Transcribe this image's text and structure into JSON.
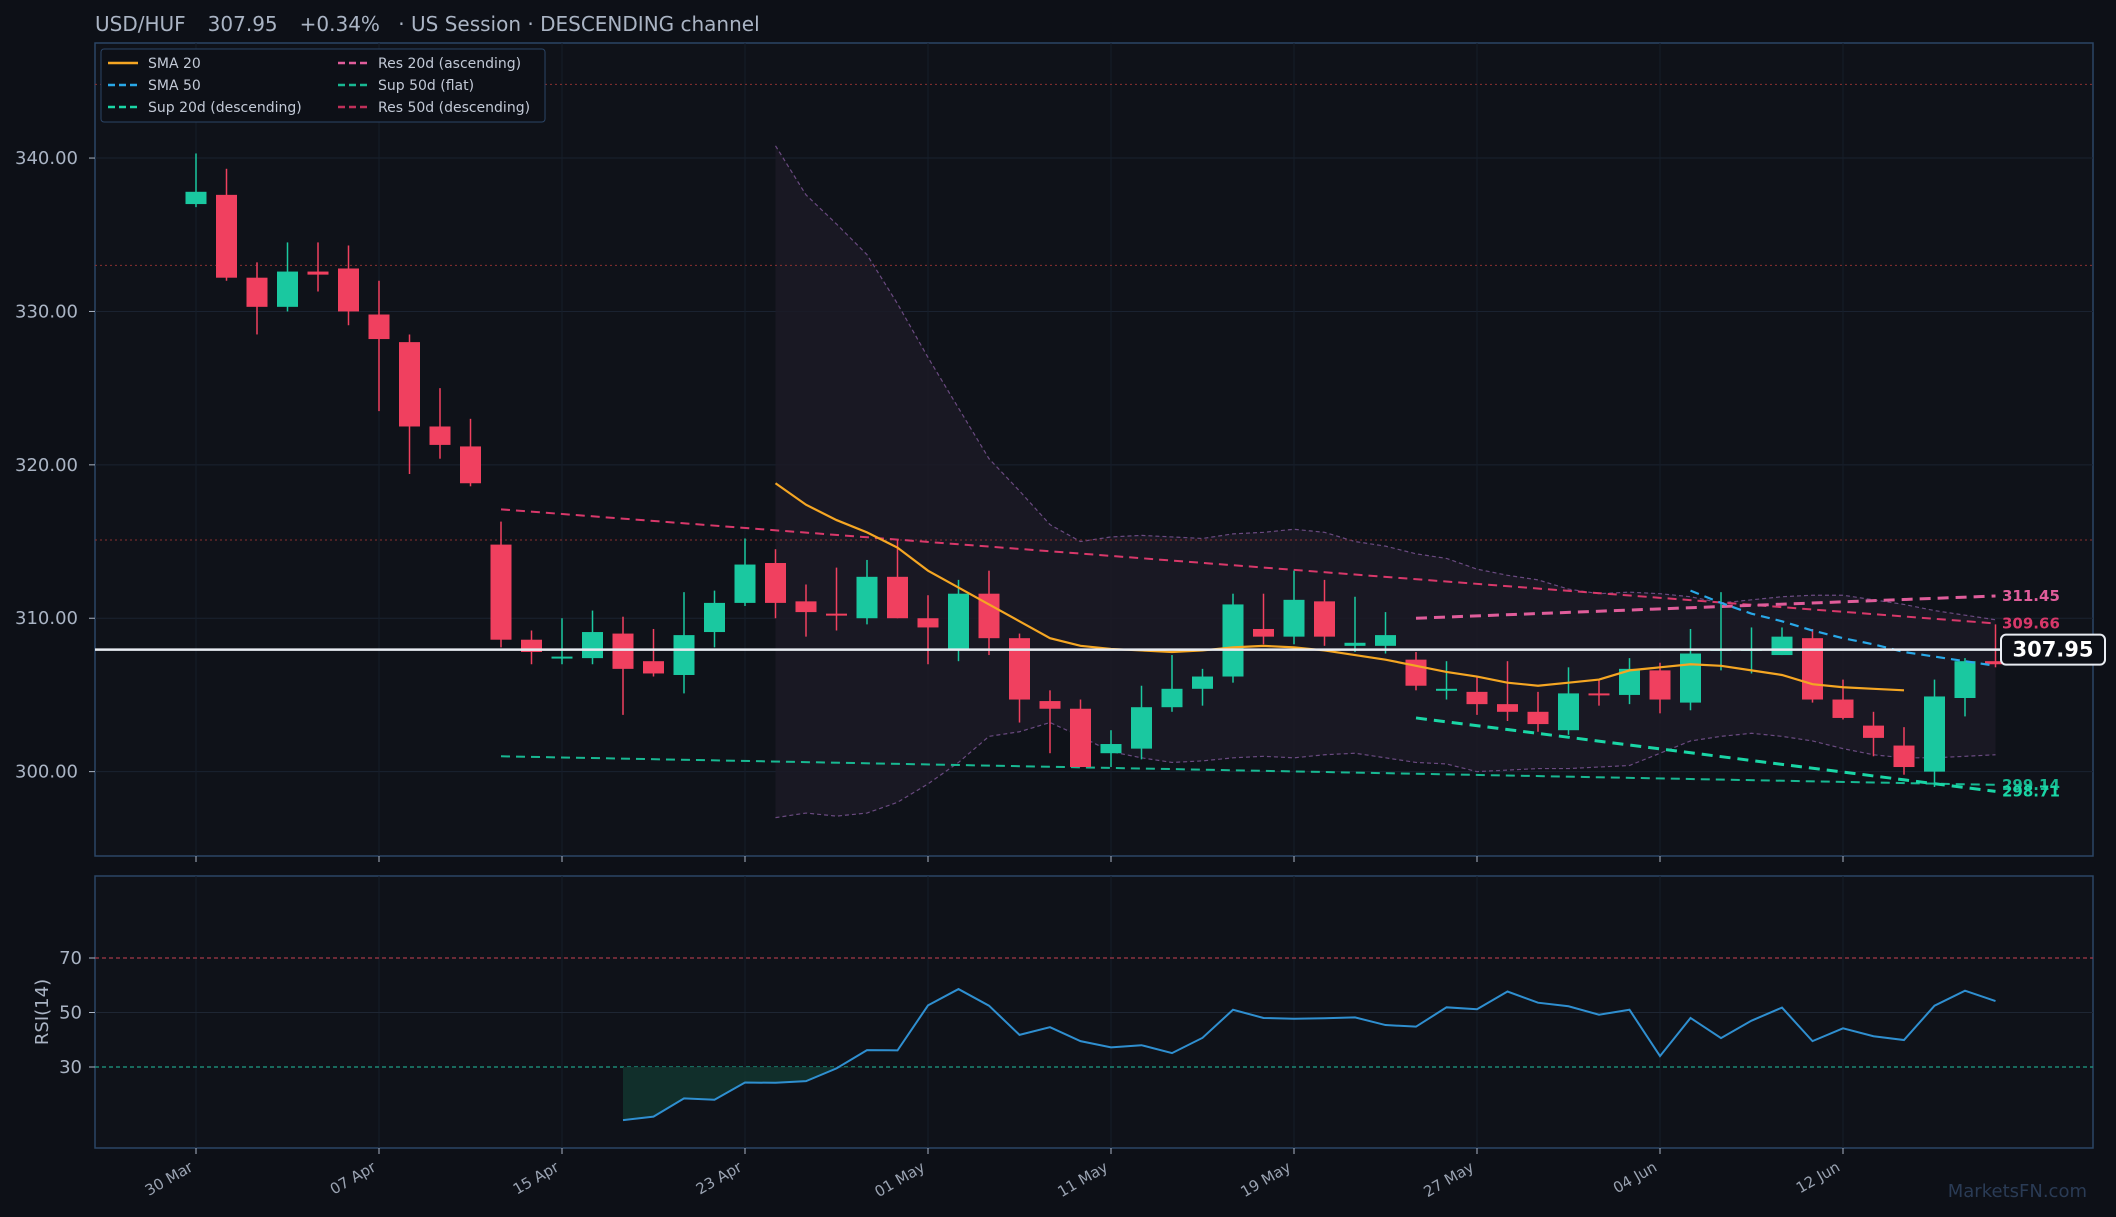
{
  "header": {
    "pair": "USD/HUF",
    "price": "307.95",
    "change": "+0.34%",
    "session": "US Session",
    "channel": "DESCENDING channel"
  },
  "watermark": "MarketsFN.com",
  "colors": {
    "background": "#0d1017",
    "up": "#1ac8a0",
    "down": "#f0405f",
    "sma20": "#f5a623",
    "sma50": "#29a8e8",
    "support": "#1ad6a6",
    "resistance": "#e05d9b",
    "rsi": "#2f8fd0"
  },
  "legend": [
    {
      "label": "SMA 20",
      "color": "#f5a623",
      "dash": "solid"
    },
    {
      "label": "SMA 50",
      "color": "#29a8e8",
      "dash": "dashed"
    },
    {
      "label": "Sup 20d (descending)",
      "color": "#1ad6a6",
      "dash": "dashed"
    },
    {
      "label": "Res 20d (ascending)",
      "color": "#e05d9b",
      "dash": "dashed"
    },
    {
      "label": "Sup 50d (flat)",
      "color": "#18b892",
      "dash": "dashed"
    },
    {
      "label": "Res 50d (descending)",
      "color": "#c0305a",
      "dash": "dashed"
    }
  ],
  "chart_data": {
    "type": "candlestick",
    "ylim": [
      294.5,
      347.5
    ],
    "yticks": [
      "300.00",
      "310.00",
      "320.00",
      "330.00",
      "340.00"
    ],
    "ytick_values": [
      300,
      310,
      320,
      330,
      340
    ],
    "xticks": [
      "30 Mar",
      "07 Apr",
      "15 Apr",
      "23 Apr",
      "01 May",
      "11 May",
      "19 May",
      "27 May",
      "04 Jun",
      "12 Jun"
    ],
    "xtick_index": [
      0,
      6,
      12,
      18,
      24,
      30,
      36,
      42,
      48,
      54
    ],
    "dotted_levels": [
      344.8,
      333.0,
      315.1
    ],
    "current_price": 307.95,
    "candles": [
      [
        337.0,
        337.8,
        340.3,
        336.8
      ],
      [
        337.6,
        332.2,
        339.3,
        332.0
      ],
      [
        332.2,
        330.3,
        333.2,
        328.5
      ],
      [
        330.3,
        332.6,
        334.5,
        330.0
      ],
      [
        332.6,
        332.4,
        334.5,
        331.3
      ],
      [
        332.8,
        330.0,
        334.3,
        329.1
      ],
      [
        329.8,
        328.2,
        332.0,
        323.5
      ],
      [
        328.0,
        322.5,
        328.5,
        319.4
      ],
      [
        322.5,
        321.3,
        325.0,
        320.4
      ],
      [
        321.2,
        318.8,
        323.0,
        318.6
      ],
      [
        314.8,
        308.6,
        316.3,
        308.1
      ],
      [
        308.6,
        307.8,
        309.2,
        307.0
      ],
      [
        307.4,
        307.5,
        310.0,
        307.0
      ],
      [
        307.4,
        309.1,
        310.5,
        307.0
      ],
      [
        309.0,
        306.7,
        310.1,
        303.7
      ],
      [
        307.2,
        306.4,
        309.3,
        306.2
      ],
      [
        306.3,
        308.9,
        311.7,
        305.1
      ],
      [
        309.1,
        311.0,
        311.8,
        308.1
      ],
      [
        311.0,
        313.5,
        315.2,
        310.8
      ],
      [
        313.6,
        311.0,
        314.5,
        310.0
      ],
      [
        311.1,
        310.4,
        312.2,
        308.8
      ],
      [
        310.3,
        310.2,
        313.3,
        309.2
      ],
      [
        310.0,
        312.7,
        313.8,
        309.6
      ],
      [
        312.7,
        310.0,
        315.1,
        310.0
      ],
      [
        310.0,
        309.4,
        311.5,
        307.0
      ],
      [
        308.0,
        311.6,
        312.5,
        307.2
      ],
      [
        311.6,
        308.7,
        313.1,
        307.6
      ],
      [
        308.7,
        304.7,
        309.0,
        303.2
      ],
      [
        304.6,
        304.1,
        305.3,
        301.2
      ],
      [
        304.1,
        300.3,
        304.7,
        300.3
      ],
      [
        301.2,
        301.8,
        302.7,
        300.3
      ],
      [
        301.5,
        304.2,
        305.6,
        300.8
      ],
      [
        304.2,
        305.4,
        307.6,
        303.9
      ],
      [
        305.4,
        306.2,
        306.7,
        304.3
      ],
      [
        306.2,
        310.9,
        311.6,
        305.8
      ],
      [
        309.3,
        308.8,
        311.6,
        308.3
      ],
      [
        308.8,
        311.2,
        313.1,
        308.3
      ],
      [
        311.1,
        308.8,
        312.5,
        308.2
      ],
      [
        308.2,
        308.4,
        311.4,
        307.8
      ],
      [
        308.2,
        308.9,
        310.4,
        307.7
      ],
      [
        307.3,
        305.6,
        307.8,
        305.3
      ],
      [
        305.4,
        305.4,
        307.2,
        304.7
      ],
      [
        305.2,
        304.4,
        306.2,
        303.7
      ],
      [
        304.4,
        303.9,
        307.2,
        303.3
      ],
      [
        303.9,
        303.1,
        305.2,
        302.6
      ],
      [
        302.7,
        305.1,
        306.8,
        302.4
      ],
      [
        305.1,
        305.0,
        306.0,
        304.3
      ],
      [
        305.0,
        306.7,
        307.4,
        304.4
      ],
      [
        306.6,
        304.7,
        307.1,
        303.8
      ],
      [
        304.5,
        307.7,
        309.3,
        304.0
      ],
      [
        308.0,
        308.0,
        311.7,
        306.6
      ],
      [
        308.0,
        308.0,
        309.4,
        306.4
      ],
      [
        307.6,
        308.8,
        309.4,
        307.6
      ],
      [
        308.7,
        304.7,
        309.3,
        304.5
      ],
      [
        304.7,
        303.5,
        306.0,
        303.4
      ],
      [
        303.0,
        302.2,
        303.9,
        301.0
      ],
      [
        301.7,
        300.3,
        302.9,
        299.8
      ],
      [
        300.0,
        304.9,
        306.0,
        299.0
      ],
      [
        304.8,
        307.2,
        307.4,
        303.6
      ],
      [
        307.2,
        307.0,
        309.6,
        306.8
      ]
    ],
    "sma20": {
      "start": 19,
      "values": [
        318.8,
        317.4,
        316.4,
        315.6,
        314.6,
        313.1,
        312.0,
        310.9,
        309.8,
        308.7,
        308.2,
        308.0,
        307.9,
        307.8,
        307.9,
        308.1,
        308.2,
        308.1,
        307.9,
        307.6,
        307.3,
        306.9,
        306.5,
        306.2,
        305.8,
        305.6,
        305.8,
        306.0,
        306.6,
        306.8,
        307.0,
        306.9,
        306.6,
        306.3,
        305.7,
        305.5,
        305.4,
        305.3
      ]
    },
    "sma50": {
      "start": 49,
      "values": [
        311.8,
        311.0,
        310.3,
        309.8,
        309.2,
        308.7,
        308.3,
        307.8,
        307.5,
        307.2,
        306.9
      ]
    },
    "bollinger": {
      "start": 19,
      "upper": [
        340.8,
        337.6,
        335.7,
        333.7,
        330.5,
        327.0,
        323.7,
        320.4,
        318.3,
        316.1,
        315.0,
        315.3,
        315.4,
        315.3,
        315.2,
        315.5,
        315.6,
        315.8,
        315.6,
        315.0,
        314.7,
        314.2,
        313.9,
        313.2,
        312.8,
        312.5,
        311.9,
        311.6,
        311.7,
        311.6,
        311.4,
        311.0,
        311.2,
        311.4,
        311.5,
        311.5,
        311.2,
        310.9,
        310.5,
        310.2,
        309.9
      ],
      "lower": [
        297.0,
        297.3,
        297.1,
        297.3,
        298.0,
        299.2,
        300.6,
        302.3,
        302.6,
        303.2,
        302.3,
        301.3,
        300.9,
        300.6,
        300.7,
        300.9,
        301.0,
        300.9,
        301.1,
        301.2,
        300.9,
        300.6,
        300.5,
        300.0,
        300.1,
        300.2,
        300.2,
        300.3,
        300.4,
        301.2,
        302.0,
        302.3,
        302.5,
        302.3,
        302.0,
        301.5,
        301.1,
        300.9,
        300.9,
        301.0,
        301.1
      ]
    },
    "lines": [
      {
        "name": "Res 50d (descending)",
        "x0": 10,
        "y0": 317.1,
        "x1": 59,
        "y1": 309.66,
        "label": "309.66",
        "color": "#d8386a",
        "width": 2,
        "dash": "9,6"
      },
      {
        "name": "Res 20d (ascending)",
        "x0": 40,
        "y0": 310.0,
        "x1": 59,
        "y1": 311.45,
        "label": "311.45",
        "color": "#e05d9b",
        "width": 3,
        "dash": "11,7"
      },
      {
        "name": "Sup 50d (flat)",
        "x0": 10,
        "y0": 301.0,
        "x1": 59,
        "y1": 299.14,
        "label": "299.14",
        "color": "#18b892",
        "width": 2,
        "dash": "9,6"
      },
      {
        "name": "Sup 20d (descending)",
        "x0": 40,
        "y0": 303.5,
        "x1": 59,
        "y1": 298.71,
        "label": "298.71",
        "color": "#1ad6a6",
        "width": 3,
        "dash": "11,7"
      }
    ],
    "rsi": {
      "label": "RSI(14)",
      "ylim": [
        0,
        100
      ],
      "yticks": [
        "30",
        "50",
        "70"
      ],
      "ytick_values": [
        30,
        50,
        70
      ],
      "overbought": 70,
      "oversold": 30,
      "start": 14,
      "values": [
        10.5,
        11.8,
        18.5,
        18.0,
        24.3,
        24.2,
        24.8,
        29.5,
        36.2,
        36.1,
        52.6,
        58.6,
        52.5,
        41.8,
        44.6,
        39.5,
        37.2,
        38.0,
        35.1,
        40.7,
        51.0,
        48.0,
        47.7,
        47.9,
        48.2,
        45.4,
        44.8,
        51.9,
        51.2,
        57.7,
        53.6,
        52.3,
        49.2,
        51.0,
        34.0,
        48.0,
        40.6,
        47.0,
        51.8,
        39.5,
        44.2,
        41.3,
        39.9,
        52.5,
        58.0,
        54.2
      ]
    }
  }
}
